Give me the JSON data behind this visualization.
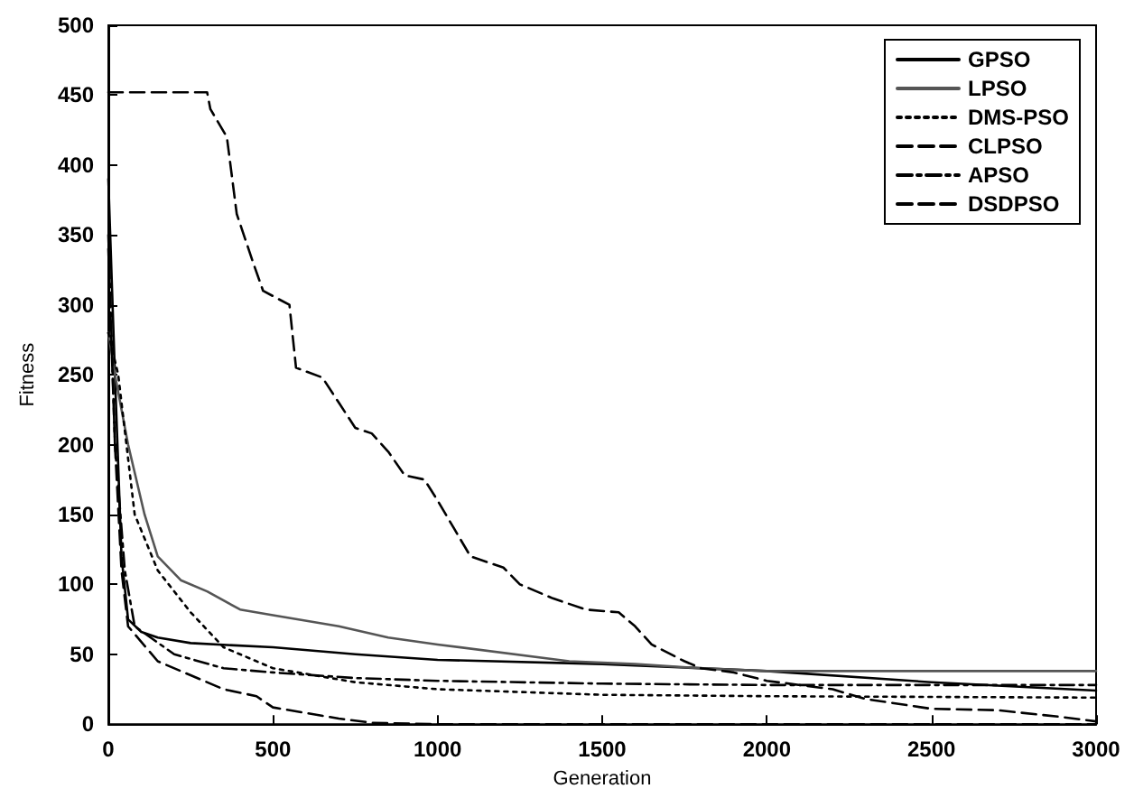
{
  "chart_data": {
    "type": "line",
    "xlabel": "Generation",
    "ylabel": "Fitness",
    "xlim": [
      0,
      3000
    ],
    "xticks": [
      0,
      500,
      1000,
      1500,
      2000,
      2500,
      3000
    ],
    "ylim": [
      0,
      500
    ],
    "yticks": [
      0,
      50,
      100,
      150,
      200,
      250,
      300,
      350,
      400,
      450,
      500
    ],
    "grid": false,
    "legend": "top right",
    "marker": "none",
    "series": [
      {
        "name": "GPSO",
        "color": "#000000",
        "line_style": "solid",
        "x": [
          0,
          20,
          40,
          60,
          100,
          150,
          250,
          500,
          750,
          1000,
          1500,
          2000,
          2500,
          3000
        ],
        "values": [
          390,
          250,
          120,
          75,
          66,
          62,
          58,
          55,
          50,
          46,
          43,
          38,
          30,
          24
        ]
      },
      {
        "name": "LPSO",
        "color": "#555555",
        "line_style": "solid",
        "x": [
          0,
          20,
          60,
          110,
          150,
          220,
          300,
          400,
          500,
          700,
          850,
          1000,
          1400,
          1600,
          1800,
          2000,
          3000
        ],
        "values": [
          280,
          250,
          200,
          150,
          120,
          103,
          95,
          82,
          78,
          70,
          62,
          57,
          45,
          43,
          40,
          38,
          38
        ]
      },
      {
        "name": "DMS-PSO",
        "color": "#000000",
        "line_style": "dotted",
        "x": [
          0,
          30,
          80,
          150,
          250,
          350,
          500,
          750,
          1000,
          1500,
          2000,
          3000
        ],
        "values": [
          280,
          250,
          150,
          110,
          80,
          55,
          40,
          30,
          25,
          21,
          20,
          19
        ]
      },
      {
        "name": "CLPSO",
        "color": "#000000",
        "line_style": "dashed",
        "x": [
          0,
          300,
          310,
          360,
          390,
          440,
          470,
          550,
          570,
          650,
          700,
          750,
          800,
          850,
          900,
          960,
          1000,
          1050,
          1100,
          1200,
          1250,
          1350,
          1450,
          1550,
          1600,
          1650,
          1750,
          1800,
          1900,
          2000,
          2200,
          2300,
          2500,
          2700,
          2900,
          3000
        ],
        "values": [
          452,
          452,
          440,
          420,
          365,
          330,
          310,
          300,
          255,
          248,
          230,
          212,
          208,
          195,
          178,
          175,
          160,
          140,
          120,
          112,
          100,
          90,
          82,
          80,
          70,
          57,
          45,
          40,
          37,
          31,
          25,
          18,
          11,
          10,
          5,
          2
        ]
      },
      {
        "name": "APSO",
        "color": "#000000",
        "line_style": "dashdot",
        "x": [
          0,
          20,
          50,
          80,
          200,
          350,
          500,
          750,
          1000,
          1500,
          2000,
          3000
        ],
        "values": [
          350,
          200,
          110,
          70,
          50,
          40,
          37,
          33,
          31,
          29,
          28,
          28
        ]
      },
      {
        "name": "DSDPSO",
        "color": "#000000",
        "line_style": "dashed",
        "x": [
          0,
          20,
          40,
          60,
          150,
          250,
          350,
          450,
          500,
          600,
          700,
          800,
          1000,
          3000
        ],
        "values": [
          340,
          200,
          110,
          70,
          45,
          35,
          25,
          20,
          12,
          8,
          4,
          1,
          0,
          0
        ]
      }
    ]
  }
}
